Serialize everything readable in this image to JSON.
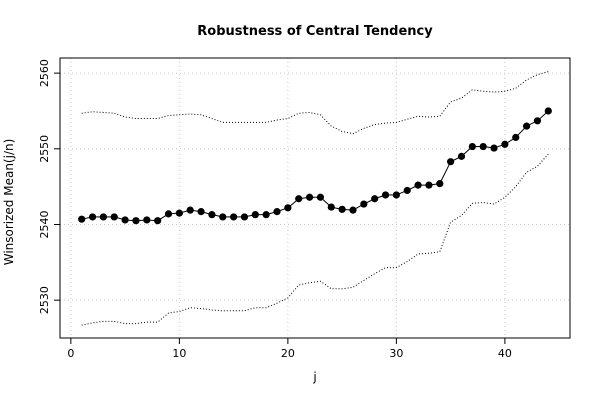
{
  "chart_data": {
    "type": "scatter",
    "title": "Robustness of Central Tendency",
    "xlabel": "j",
    "ylabel": "Winsorized Mean(j/n)",
    "xlim": [
      -1,
      46
    ],
    "ylim": [
      2525,
      2562
    ],
    "x_ticks": [
      0,
      10,
      20,
      30,
      40
    ],
    "y_ticks": [
      2530,
      2540,
      2550,
      2560
    ],
    "grid": true,
    "grid_style": "dotted",
    "series": [
      {
        "role": "points",
        "x": [
          1,
          2,
          3,
          4,
          5,
          6,
          7,
          8,
          9,
          10,
          11,
          12,
          13,
          14,
          15,
          16,
          17,
          18,
          19,
          20,
          21,
          22,
          23,
          24,
          25,
          26,
          27,
          28,
          29,
          30,
          31,
          32,
          33,
          34,
          35,
          36,
          37,
          38,
          39,
          40,
          41,
          42,
          43,
          44
        ],
        "values": [
          2540.7,
          2541.0,
          2541.0,
          2541.0,
          2540.6,
          2540.5,
          2540.6,
          2540.5,
          2541.4,
          2541.5,
          2541.9,
          2541.7,
          2541.3,
          2541.0,
          2541.0,
          2541.0,
          2541.3,
          2541.3,
          2541.7,
          2542.2,
          2543.4,
          2543.6,
          2543.6,
          2542.3,
          2542.0,
          2541.9,
          2542.7,
          2543.4,
          2543.9,
          2543.9,
          2544.5,
          2545.2,
          2545.2,
          2545.4,
          2548.3,
          2549.0,
          2550.3,
          2550.3,
          2550.1,
          2550.6,
          2551.5,
          2553.0,
          2553.7,
          2555.0
        ]
      },
      {
        "role": "upper-bound",
        "x": [
          1,
          2,
          3,
          4,
          5,
          6,
          7,
          8,
          9,
          10,
          11,
          12,
          13,
          14,
          15,
          16,
          17,
          18,
          19,
          20,
          21,
          22,
          23,
          24,
          25,
          26,
          27,
          28,
          29,
          30,
          31,
          32,
          33,
          34,
          35,
          36,
          37,
          38,
          39,
          40,
          41,
          42,
          43,
          44
        ],
        "values": [
          2554.7,
          2554.9,
          2554.8,
          2554.7,
          2554.2,
          2554.0,
          2554.0,
          2554.0,
          2554.4,
          2554.5,
          2554.6,
          2554.5,
          2554.0,
          2553.5,
          2553.5,
          2553.5,
          2553.5,
          2553.5,
          2553.8,
          2554.0,
          2554.7,
          2554.8,
          2554.5,
          2553.0,
          2552.3,
          2552.0,
          2552.7,
          2553.2,
          2553.4,
          2553.5,
          2553.9,
          2554.3,
          2554.2,
          2554.3,
          2556.2,
          2556.7,
          2557.8,
          2557.6,
          2557.5,
          2557.6,
          2558.0,
          2559.1,
          2559.8,
          2560.2
        ]
      },
      {
        "role": "lower-bound",
        "x": [
          1,
          2,
          3,
          4,
          5,
          6,
          7,
          8,
          9,
          10,
          11,
          12,
          13,
          14,
          15,
          16,
          17,
          18,
          19,
          20,
          21,
          22,
          23,
          24,
          25,
          26,
          27,
          28,
          29,
          30,
          31,
          32,
          33,
          34,
          35,
          36,
          37,
          38,
          39,
          40,
          41,
          42,
          43,
          44
        ],
        "values": [
          2526.7,
          2527.0,
          2527.2,
          2527.2,
          2526.9,
          2526.9,
          2527.1,
          2527.1,
          2528.3,
          2528.5,
          2529.0,
          2528.9,
          2528.7,
          2528.6,
          2528.6,
          2528.6,
          2529.0,
          2529.0,
          2529.6,
          2530.3,
          2532.0,
          2532.3,
          2532.5,
          2531.5,
          2531.5,
          2531.7,
          2532.6,
          2533.5,
          2534.3,
          2534.3,
          2535.1,
          2536.1,
          2536.2,
          2536.4,
          2540.3,
          2541.2,
          2542.8,
          2542.9,
          2542.7,
          2543.6,
          2545.0,
          2546.9,
          2547.7,
          2549.3
        ]
      }
    ],
    "colors": {
      "points": "#000000",
      "bounds": "#000000",
      "grid": "#c8c8c8",
      "background": "#ffffff"
    }
  }
}
